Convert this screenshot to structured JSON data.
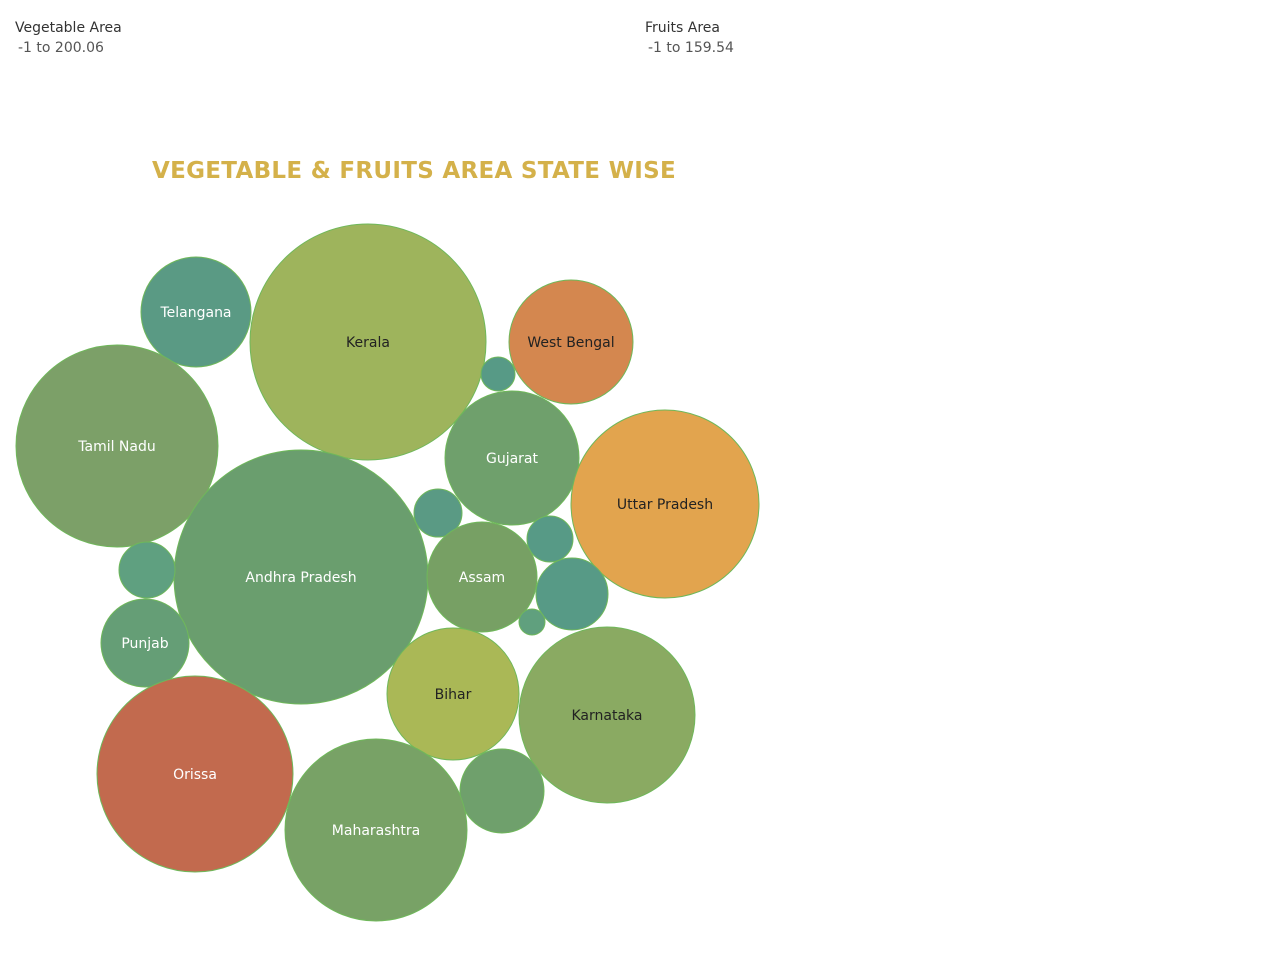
{
  "filters": {
    "vegetable": {
      "title": "Vegetable Area",
      "range": "-1 to 200.06"
    },
    "fruits": {
      "title": "Fruits Area",
      "range": "-1 to 159.54"
    }
  },
  "chart_data": {
    "type": "bubble",
    "title": "VEGETABLE & FRUITS AREA STATE WISE",
    "encoding": {
      "size": "Vegetable Area",
      "color": "Fruits Area"
    },
    "bubbles": [
      {
        "label": "Kerala",
        "color": "#9eb45c",
        "text_color": "#222222"
      },
      {
        "label": "Telangana",
        "color": "#5a9a84",
        "text_color": "#ffffff"
      },
      {
        "label": "West Bengal",
        "color": "#d4874f",
        "text_color": "#222222"
      },
      {
        "label": "",
        "color": "#579a86",
        "text_color": "#ffffff"
      },
      {
        "label": "Tamil Nadu",
        "color": "#7ca068",
        "text_color": "#ffffff"
      },
      {
        "label": "Gujarat",
        "color": "#6fa06c",
        "text_color": "#ffffff"
      },
      {
        "label": "Uttar Pradesh",
        "color": "#e2a44e",
        "text_color": "#222222"
      },
      {
        "label": "",
        "color": "#5a9a84",
        "text_color": "#ffffff"
      },
      {
        "label": "Andhra Pradesh",
        "color": "#6a9e6e",
        "text_color": "#ffffff"
      },
      {
        "label": "",
        "color": "#579a86",
        "text_color": "#ffffff"
      },
      {
        "label": "Assam",
        "color": "#77a064",
        "text_color": "#ffffff"
      },
      {
        "label": "",
        "color": "#5fa080",
        "text_color": "#ffffff"
      },
      {
        "label": "",
        "color": "#579a86",
        "text_color": "#ffffff"
      },
      {
        "label": "",
        "color": "#60a07e",
        "text_color": "#ffffff"
      },
      {
        "label": "Punjab",
        "color": "#659e76",
        "text_color": "#ffffff"
      },
      {
        "label": "Bihar",
        "color": "#aab856",
        "text_color": "#222222"
      },
      {
        "label": "Karnataka",
        "color": "#8aaa62",
        "text_color": "#222222"
      },
      {
        "label": "Orissa",
        "color": "#c26a4e",
        "text_color": "#ffffff"
      },
      {
        "label": "",
        "color": "#6fa06c",
        "text_color": "#ffffff"
      },
      {
        "label": "Maharashtra",
        "color": "#78a266",
        "text_color": "#ffffff"
      }
    ]
  }
}
